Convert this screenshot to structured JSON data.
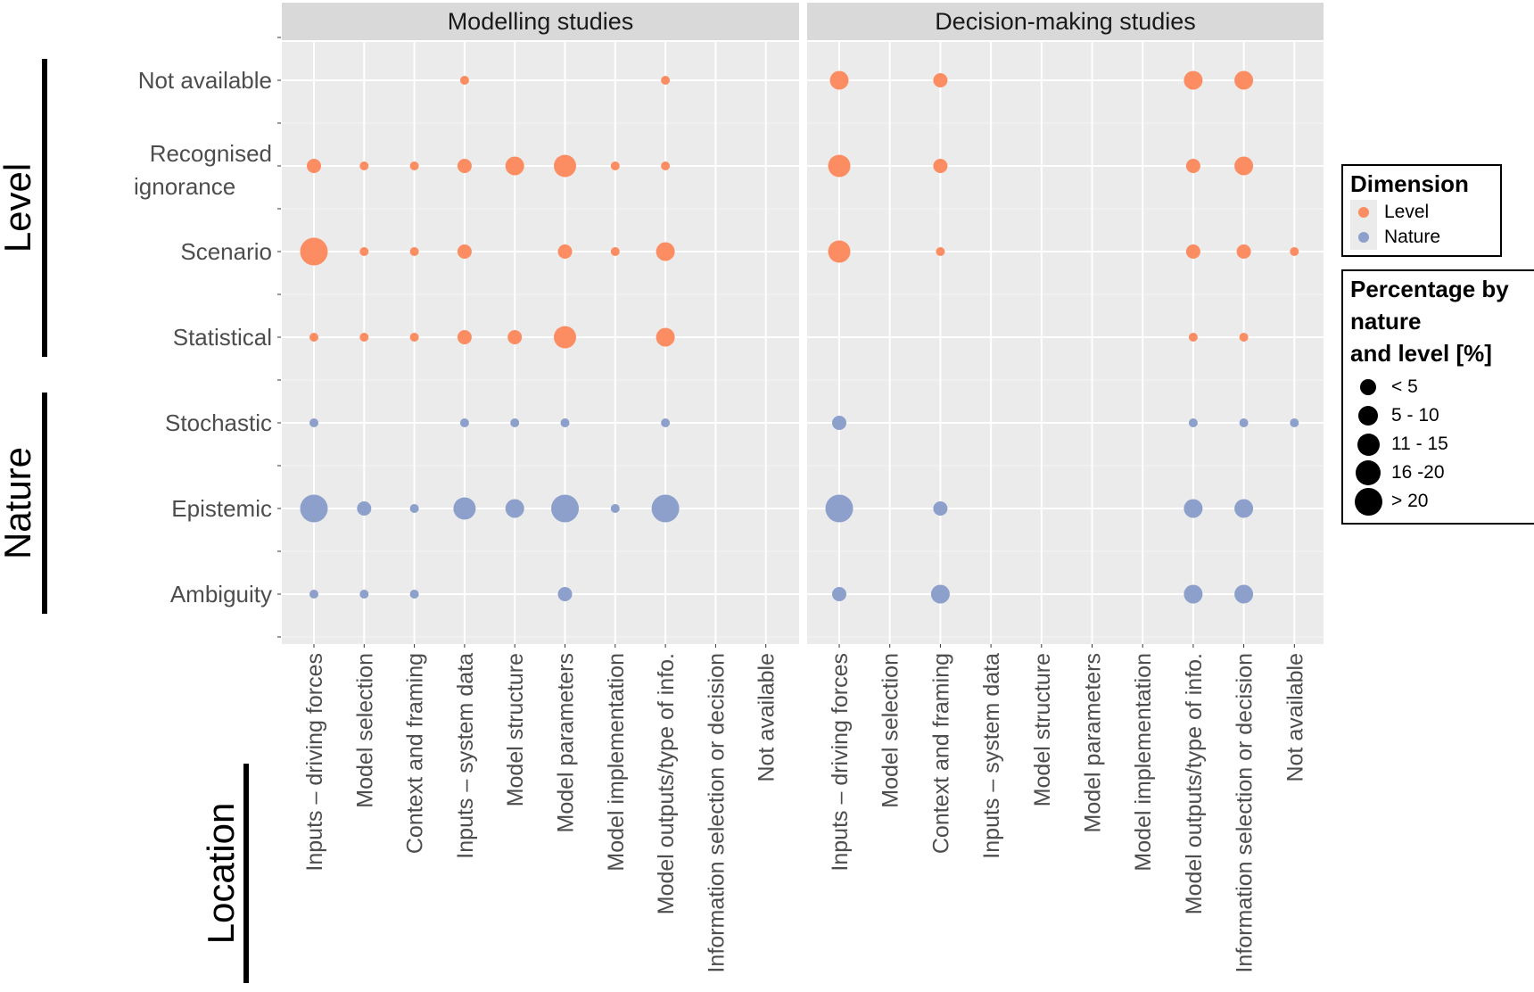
{
  "chart_data": {
    "type": "scatter",
    "subtype": "bubble-matrix",
    "facets": [
      "Modelling studies",
      "Decision-making studies"
    ],
    "x_categories": [
      "Inputs – driving forces",
      "Model selection",
      "Context and framing",
      "Inputs – system data",
      "Model structure",
      "Model parameters",
      "Model implementation",
      "Model outputs/type of info.",
      "Information selection or decision",
      "Not available"
    ],
    "y_categories": [
      "Not available",
      "Recognised ignorance",
      "Scenario",
      "Statistical",
      "Stochastic",
      "Epistemic",
      "Ambiguity"
    ],
    "y_groups": [
      {
        "label": "Level",
        "rows": [
          "Not available",
          "Recognised ignorance",
          "Scenario",
          "Statistical"
        ]
      },
      {
        "label": "Nature",
        "rows": [
          "Stochastic",
          "Epistemic",
          "Ambiguity"
        ]
      }
    ],
    "x_group_label": "Location",
    "dimension_colors": {
      "Level": "#fc8d62",
      "Nature": "#8da0cb"
    },
    "size_classes": [
      "< 5",
      "5 - 10",
      "11 - 15",
      "16 -20",
      "> 20"
    ],
    "points": [
      {
        "facet": "Modelling studies",
        "x": "Inputs – system data",
        "y": "Not available",
        "dimension": "Level",
        "size_class": "< 5"
      },
      {
        "facet": "Modelling studies",
        "x": "Model outputs/type of info.",
        "y": "Not available",
        "dimension": "Level",
        "size_class": "< 5"
      },
      {
        "facet": "Modelling studies",
        "x": "Inputs – driving forces",
        "y": "Recognised ignorance",
        "dimension": "Level",
        "size_class": "5 - 10"
      },
      {
        "facet": "Modelling studies",
        "x": "Model selection",
        "y": "Recognised ignorance",
        "dimension": "Level",
        "size_class": "< 5"
      },
      {
        "facet": "Modelling studies",
        "x": "Context and framing",
        "y": "Recognised ignorance",
        "dimension": "Level",
        "size_class": "< 5"
      },
      {
        "facet": "Modelling studies",
        "x": "Inputs – system data",
        "y": "Recognised ignorance",
        "dimension": "Level",
        "size_class": "5 - 10"
      },
      {
        "facet": "Modelling studies",
        "x": "Model structure",
        "y": "Recognised ignorance",
        "dimension": "Level",
        "size_class": "11 - 15"
      },
      {
        "facet": "Modelling studies",
        "x": "Model parameters",
        "y": "Recognised ignorance",
        "dimension": "Level",
        "size_class": "16 -20"
      },
      {
        "facet": "Modelling studies",
        "x": "Model implementation",
        "y": "Recognised ignorance",
        "dimension": "Level",
        "size_class": "< 5"
      },
      {
        "facet": "Modelling studies",
        "x": "Model outputs/type of info.",
        "y": "Recognised ignorance",
        "dimension": "Level",
        "size_class": "< 5"
      },
      {
        "facet": "Modelling studies",
        "x": "Inputs – driving forces",
        "y": "Scenario",
        "dimension": "Level",
        "size_class": "> 20"
      },
      {
        "facet": "Modelling studies",
        "x": "Model selection",
        "y": "Scenario",
        "dimension": "Level",
        "size_class": "< 5"
      },
      {
        "facet": "Modelling studies",
        "x": "Context and framing",
        "y": "Scenario",
        "dimension": "Level",
        "size_class": "< 5"
      },
      {
        "facet": "Modelling studies",
        "x": "Inputs – system data",
        "y": "Scenario",
        "dimension": "Level",
        "size_class": "5 - 10"
      },
      {
        "facet": "Modelling studies",
        "x": "Model parameters",
        "y": "Scenario",
        "dimension": "Level",
        "size_class": "5 - 10"
      },
      {
        "facet": "Modelling studies",
        "x": "Model implementation",
        "y": "Scenario",
        "dimension": "Level",
        "size_class": "< 5"
      },
      {
        "facet": "Modelling studies",
        "x": "Model outputs/type of info.",
        "y": "Scenario",
        "dimension": "Level",
        "size_class": "11 - 15"
      },
      {
        "facet": "Modelling studies",
        "x": "Inputs – driving forces",
        "y": "Statistical",
        "dimension": "Level",
        "size_class": "< 5"
      },
      {
        "facet": "Modelling studies",
        "x": "Model selection",
        "y": "Statistical",
        "dimension": "Level",
        "size_class": "< 5"
      },
      {
        "facet": "Modelling studies",
        "x": "Context and framing",
        "y": "Statistical",
        "dimension": "Level",
        "size_class": "< 5"
      },
      {
        "facet": "Modelling studies",
        "x": "Inputs – system data",
        "y": "Statistical",
        "dimension": "Level",
        "size_class": "5 - 10"
      },
      {
        "facet": "Modelling studies",
        "x": "Model structure",
        "y": "Statistical",
        "dimension": "Level",
        "size_class": "5 - 10"
      },
      {
        "facet": "Modelling studies",
        "x": "Model parameters",
        "y": "Statistical",
        "dimension": "Level",
        "size_class": "16 -20"
      },
      {
        "facet": "Modelling studies",
        "x": "Model outputs/type of info.",
        "y": "Statistical",
        "dimension": "Level",
        "size_class": "11 - 15"
      },
      {
        "facet": "Modelling studies",
        "x": "Inputs – driving forces",
        "y": "Stochastic",
        "dimension": "Nature",
        "size_class": "< 5"
      },
      {
        "facet": "Modelling studies",
        "x": "Inputs – system data",
        "y": "Stochastic",
        "dimension": "Nature",
        "size_class": "< 5"
      },
      {
        "facet": "Modelling studies",
        "x": "Model structure",
        "y": "Stochastic",
        "dimension": "Nature",
        "size_class": "< 5"
      },
      {
        "facet": "Modelling studies",
        "x": "Model parameters",
        "y": "Stochastic",
        "dimension": "Nature",
        "size_class": "< 5"
      },
      {
        "facet": "Modelling studies",
        "x": "Model outputs/type of info.",
        "y": "Stochastic",
        "dimension": "Nature",
        "size_class": "< 5"
      },
      {
        "facet": "Modelling studies",
        "x": "Inputs – driving forces",
        "y": "Epistemic",
        "dimension": "Nature",
        "size_class": "> 20"
      },
      {
        "facet": "Modelling studies",
        "x": "Model selection",
        "y": "Epistemic",
        "dimension": "Nature",
        "size_class": "5 - 10"
      },
      {
        "facet": "Modelling studies",
        "x": "Context and framing",
        "y": "Epistemic",
        "dimension": "Nature",
        "size_class": "< 5"
      },
      {
        "facet": "Modelling studies",
        "x": "Inputs – system data",
        "y": "Epistemic",
        "dimension": "Nature",
        "size_class": "16 -20"
      },
      {
        "facet": "Modelling studies",
        "x": "Model structure",
        "y": "Epistemic",
        "dimension": "Nature",
        "size_class": "11 - 15"
      },
      {
        "facet": "Modelling studies",
        "x": "Model parameters",
        "y": "Epistemic",
        "dimension": "Nature",
        "size_class": "> 20"
      },
      {
        "facet": "Modelling studies",
        "x": "Model implementation",
        "y": "Epistemic",
        "dimension": "Nature",
        "size_class": "< 5"
      },
      {
        "facet": "Modelling studies",
        "x": "Model outputs/type of info.",
        "y": "Epistemic",
        "dimension": "Nature",
        "size_class": "> 20"
      },
      {
        "facet": "Modelling studies",
        "x": "Inputs – driving forces",
        "y": "Ambiguity",
        "dimension": "Nature",
        "size_class": "< 5"
      },
      {
        "facet": "Modelling studies",
        "x": "Model selection",
        "y": "Ambiguity",
        "dimension": "Nature",
        "size_class": "< 5"
      },
      {
        "facet": "Modelling studies",
        "x": "Context and framing",
        "y": "Ambiguity",
        "dimension": "Nature",
        "size_class": "< 5"
      },
      {
        "facet": "Modelling studies",
        "x": "Model parameters",
        "y": "Ambiguity",
        "dimension": "Nature",
        "size_class": "5 - 10"
      },
      {
        "facet": "Decision-making studies",
        "x": "Inputs – driving forces",
        "y": "Not available",
        "dimension": "Level",
        "size_class": "11 - 15"
      },
      {
        "facet": "Decision-making studies",
        "x": "Context and framing",
        "y": "Not available",
        "dimension": "Level",
        "size_class": "5 - 10"
      },
      {
        "facet": "Decision-making studies",
        "x": "Model outputs/type of info.",
        "y": "Not available",
        "dimension": "Level",
        "size_class": "11 - 15"
      },
      {
        "facet": "Decision-making studies",
        "x": "Information selection or decision",
        "y": "Not available",
        "dimension": "Level",
        "size_class": "11 - 15"
      },
      {
        "facet": "Decision-making studies",
        "x": "Inputs – driving forces",
        "y": "Recognised ignorance",
        "dimension": "Level",
        "size_class": "16 -20"
      },
      {
        "facet": "Decision-making studies",
        "x": "Context and framing",
        "y": "Recognised ignorance",
        "dimension": "Level",
        "size_class": "5 - 10"
      },
      {
        "facet": "Decision-making studies",
        "x": "Model outputs/type of info.",
        "y": "Recognised ignorance",
        "dimension": "Level",
        "size_class": "5 - 10"
      },
      {
        "facet": "Decision-making studies",
        "x": "Information selection or decision",
        "y": "Recognised ignorance",
        "dimension": "Level",
        "size_class": "11 - 15"
      },
      {
        "facet": "Decision-making studies",
        "x": "Inputs – driving forces",
        "y": "Scenario",
        "dimension": "Level",
        "size_class": "16 -20"
      },
      {
        "facet": "Decision-making studies",
        "x": "Context and framing",
        "y": "Scenario",
        "dimension": "Level",
        "size_class": "< 5"
      },
      {
        "facet": "Decision-making studies",
        "x": "Model outputs/type of info.",
        "y": "Scenario",
        "dimension": "Level",
        "size_class": "5 - 10"
      },
      {
        "facet": "Decision-making studies",
        "x": "Information selection or decision",
        "y": "Scenario",
        "dimension": "Level",
        "size_class": "5 - 10"
      },
      {
        "facet": "Decision-making studies",
        "x": "Not available",
        "y": "Scenario",
        "dimension": "Level",
        "size_class": "< 5"
      },
      {
        "facet": "Decision-making studies",
        "x": "Model outputs/type of info.",
        "y": "Statistical",
        "dimension": "Level",
        "size_class": "< 5"
      },
      {
        "facet": "Decision-making studies",
        "x": "Information selection or decision",
        "y": "Statistical",
        "dimension": "Level",
        "size_class": "< 5"
      },
      {
        "facet": "Decision-making studies",
        "x": "Inputs – driving forces",
        "y": "Stochastic",
        "dimension": "Nature",
        "size_class": "5 - 10"
      },
      {
        "facet": "Decision-making studies",
        "x": "Model outputs/type of info.",
        "y": "Stochastic",
        "dimension": "Nature",
        "size_class": "< 5"
      },
      {
        "facet": "Decision-making studies",
        "x": "Information selection or decision",
        "y": "Stochastic",
        "dimension": "Nature",
        "size_class": "< 5"
      },
      {
        "facet": "Decision-making studies",
        "x": "Not available",
        "y": "Stochastic",
        "dimension": "Nature",
        "size_class": "< 5"
      },
      {
        "facet": "Decision-making studies",
        "x": "Inputs – driving forces",
        "y": "Epistemic",
        "dimension": "Nature",
        "size_class": "> 20"
      },
      {
        "facet": "Decision-making studies",
        "x": "Context and framing",
        "y": "Epistemic",
        "dimension": "Nature",
        "size_class": "5 - 10"
      },
      {
        "facet": "Decision-making studies",
        "x": "Model outputs/type of info.",
        "y": "Epistemic",
        "dimension": "Nature",
        "size_class": "11 - 15"
      },
      {
        "facet": "Decision-making studies",
        "x": "Information selection or decision",
        "y": "Epistemic",
        "dimension": "Nature",
        "size_class": "11 - 15"
      },
      {
        "facet": "Decision-making studies",
        "x": "Inputs – driving forces",
        "y": "Ambiguity",
        "dimension": "Nature",
        "size_class": "5 - 10"
      },
      {
        "facet": "Decision-making studies",
        "x": "Context and framing",
        "y": "Ambiguity",
        "dimension": "Nature",
        "size_class": "11 - 15"
      },
      {
        "facet": "Decision-making studies",
        "x": "Model outputs/type of info.",
        "y": "Ambiguity",
        "dimension": "Nature",
        "size_class": "11 - 15"
      },
      {
        "facet": "Decision-making studies",
        "x": "Information selection or decision",
        "y": "Ambiguity",
        "dimension": "Nature",
        "size_class": "11 - 15"
      }
    ],
    "legend": {
      "dimension_title": "Dimension",
      "dimension_items": [
        "Level",
        "Nature"
      ],
      "size_title_lines": [
        "Percentage by",
        "nature",
        "and level [%]"
      ],
      "size_items": [
        "< 5",
        "5 - 10",
        "11 - 15",
        "16 -20",
        "> 20"
      ],
      "placement": "right"
    },
    "grid": true
  }
}
